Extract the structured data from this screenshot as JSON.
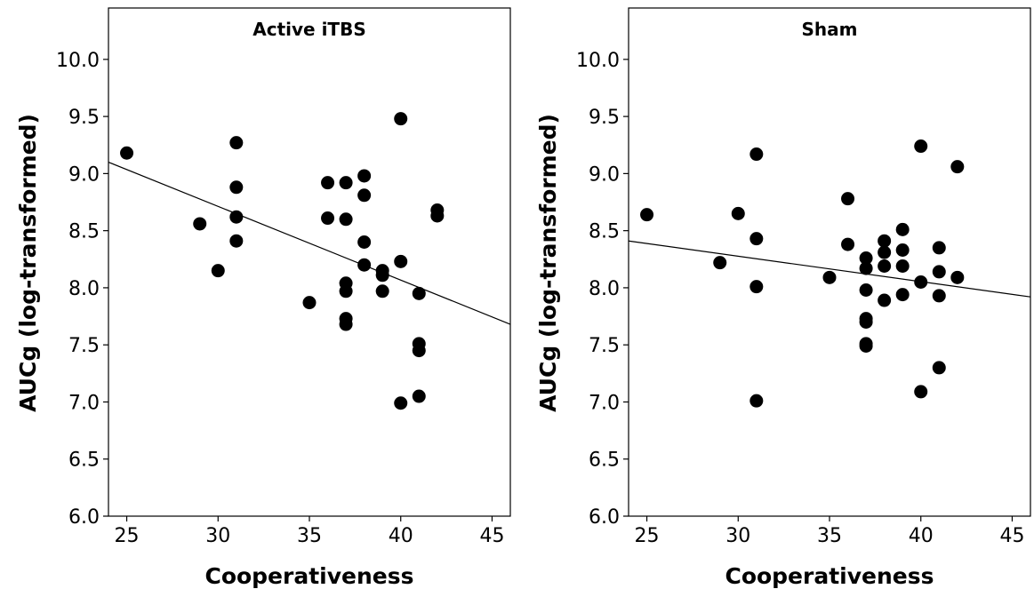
{
  "chart_data": [
    {
      "type": "scatter",
      "title": "Active iTBS",
      "xlabel": "Cooperativeness",
      "ylabel": "AUCg (log-transformed)",
      "xlim": [
        24,
        46
      ],
      "ylim": [
        6.0,
        10.45
      ],
      "xticks": [
        "25",
        "30",
        "35",
        "40",
        "45"
      ],
      "yticks": [
        "6.0",
        "6.5",
        "7.0",
        "7.5",
        "8.0",
        "8.5",
        "9.0",
        "9.5",
        "10.0"
      ],
      "fit_line": {
        "x": [
          24,
          46
        ],
        "y": [
          9.1,
          7.68
        ]
      },
      "points": [
        [
          25,
          9.18
        ],
        [
          29,
          8.56
        ],
        [
          30,
          8.15
        ],
        [
          31,
          9.27
        ],
        [
          31,
          8.88
        ],
        [
          31,
          8.62
        ],
        [
          31,
          8.41
        ],
        [
          35,
          7.87
        ],
        [
          36,
          8.92
        ],
        [
          36,
          8.61
        ],
        [
          37,
          8.92
        ],
        [
          37,
          8.6
        ],
        [
          37,
          8.04
        ],
        [
          37,
          7.97
        ],
        [
          37,
          7.73
        ],
        [
          37,
          7.68
        ],
        [
          38,
          8.98
        ],
        [
          38,
          8.81
        ],
        [
          38,
          8.4
        ],
        [
          38,
          8.2
        ],
        [
          39,
          8.15
        ],
        [
          39,
          8.11
        ],
        [
          39,
          7.97
        ],
        [
          40,
          9.48
        ],
        [
          40,
          8.23
        ],
        [
          40,
          6.99
        ],
        [
          41,
          7.95
        ],
        [
          41,
          7.51
        ],
        [
          41,
          7.45
        ],
        [
          41,
          7.05
        ],
        [
          42,
          8.68
        ],
        [
          42,
          8.63
        ]
      ],
      "grid": false,
      "legend": "none"
    },
    {
      "type": "scatter",
      "title": "Sham",
      "xlabel": "Cooperativeness",
      "ylabel": "AUCg (log-transformed)",
      "xlim": [
        24,
        46
      ],
      "ylim": [
        6.0,
        10.45
      ],
      "xticks": [
        "25",
        "30",
        "35",
        "40",
        "45"
      ],
      "yticks": [
        "6.0",
        "6.5",
        "7.0",
        "7.5",
        "8.0",
        "8.5",
        "9.0",
        "9.5",
        "10.0"
      ],
      "fit_line": {
        "x": [
          24,
          46
        ],
        "y": [
          8.41,
          7.92
        ]
      },
      "points": [
        [
          25,
          8.64
        ],
        [
          29,
          8.22
        ],
        [
          30,
          8.65
        ],
        [
          31,
          9.17
        ],
        [
          31,
          8.43
        ],
        [
          31,
          8.01
        ],
        [
          31,
          7.01
        ],
        [
          35,
          8.09
        ],
        [
          36,
          8.78
        ],
        [
          36,
          8.38
        ],
        [
          37,
          8.26
        ],
        [
          37,
          8.17
        ],
        [
          37,
          7.98
        ],
        [
          37,
          7.73
        ],
        [
          37,
          7.7
        ],
        [
          37,
          7.51
        ],
        [
          37,
          7.49
        ],
        [
          38,
          8.41
        ],
        [
          38,
          8.31
        ],
        [
          38,
          8.19
        ],
        [
          38,
          7.89
        ],
        [
          39,
          8.51
        ],
        [
          39,
          8.33
        ],
        [
          39,
          8.19
        ],
        [
          39,
          7.94
        ],
        [
          40,
          9.24
        ],
        [
          40,
          8.05
        ],
        [
          40,
          7.09
        ],
        [
          41,
          8.35
        ],
        [
          41,
          8.14
        ],
        [
          41,
          7.93
        ],
        [
          41,
          7.3
        ],
        [
          42,
          9.06
        ],
        [
          42,
          8.09
        ]
      ],
      "grid": false,
      "legend": "none"
    }
  ]
}
